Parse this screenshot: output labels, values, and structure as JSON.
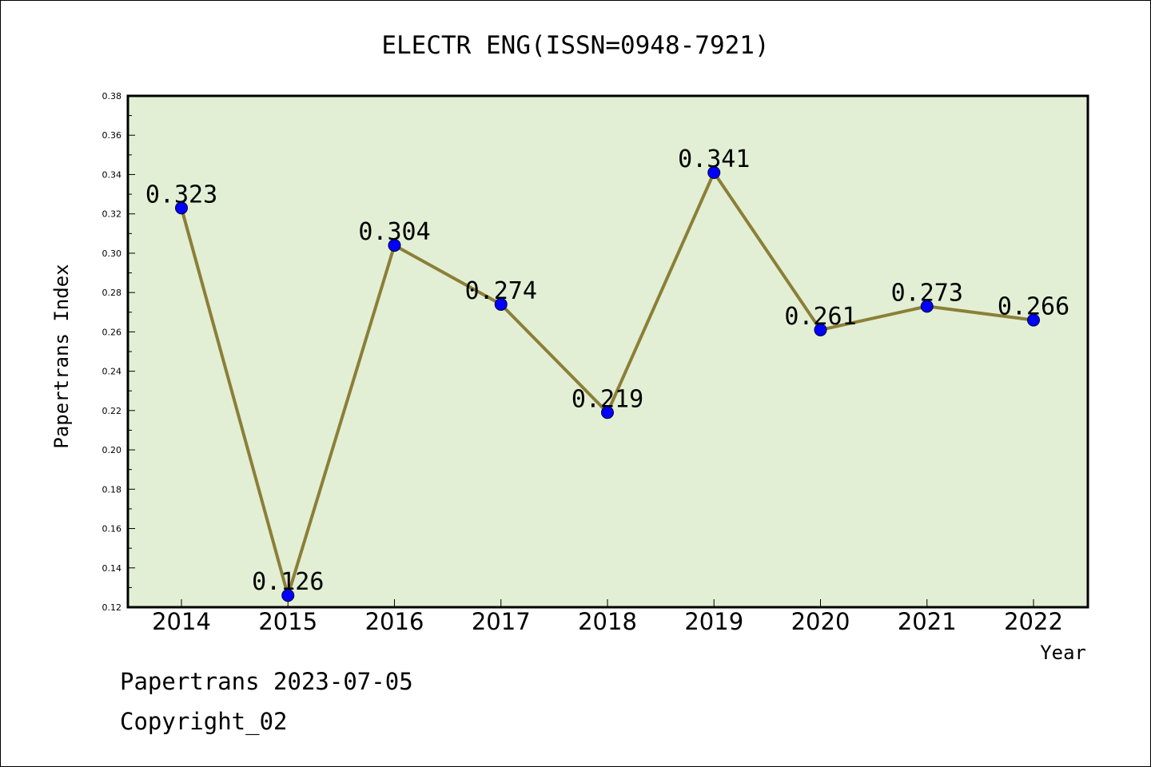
{
  "chart_data": {
    "type": "line",
    "title": "ELECTR ENG(ISSN=0948-7921)",
    "xlabel": "Year",
    "ylabel": "Papertrans Index",
    "categories": [
      "2014",
      "2015",
      "2016",
      "2017",
      "2018",
      "2019",
      "2020",
      "2021",
      "2022"
    ],
    "series": [
      {
        "values": [
          0.323,
          0.126,
          0.304,
          0.274,
          0.219,
          0.341,
          0.261,
          0.273,
          0.266
        ]
      }
    ],
    "data_labels": [
      "0.323",
      "0.126",
      "0.304",
      "0.274",
      "0.219",
      "0.341",
      "0.261",
      "0.273",
      "0.266"
    ],
    "ylim": [
      0.12,
      0.38
    ],
    "yticks": [
      "0.12",
      "0.14",
      "0.16",
      "0.18",
      "0.20",
      "0.22",
      "0.24",
      "0.26",
      "0.28",
      "0.30",
      "0.32",
      "0.34",
      "0.36",
      "0.38"
    ],
    "grid": false,
    "legend": "none",
    "colors": {
      "plot_background": "#e2efd4",
      "line": "#8b7f38",
      "marker": "#0000ff"
    }
  },
  "footer": {
    "line1": "Papertrans 2023-07-05",
    "line2": "Copyright_02"
  }
}
